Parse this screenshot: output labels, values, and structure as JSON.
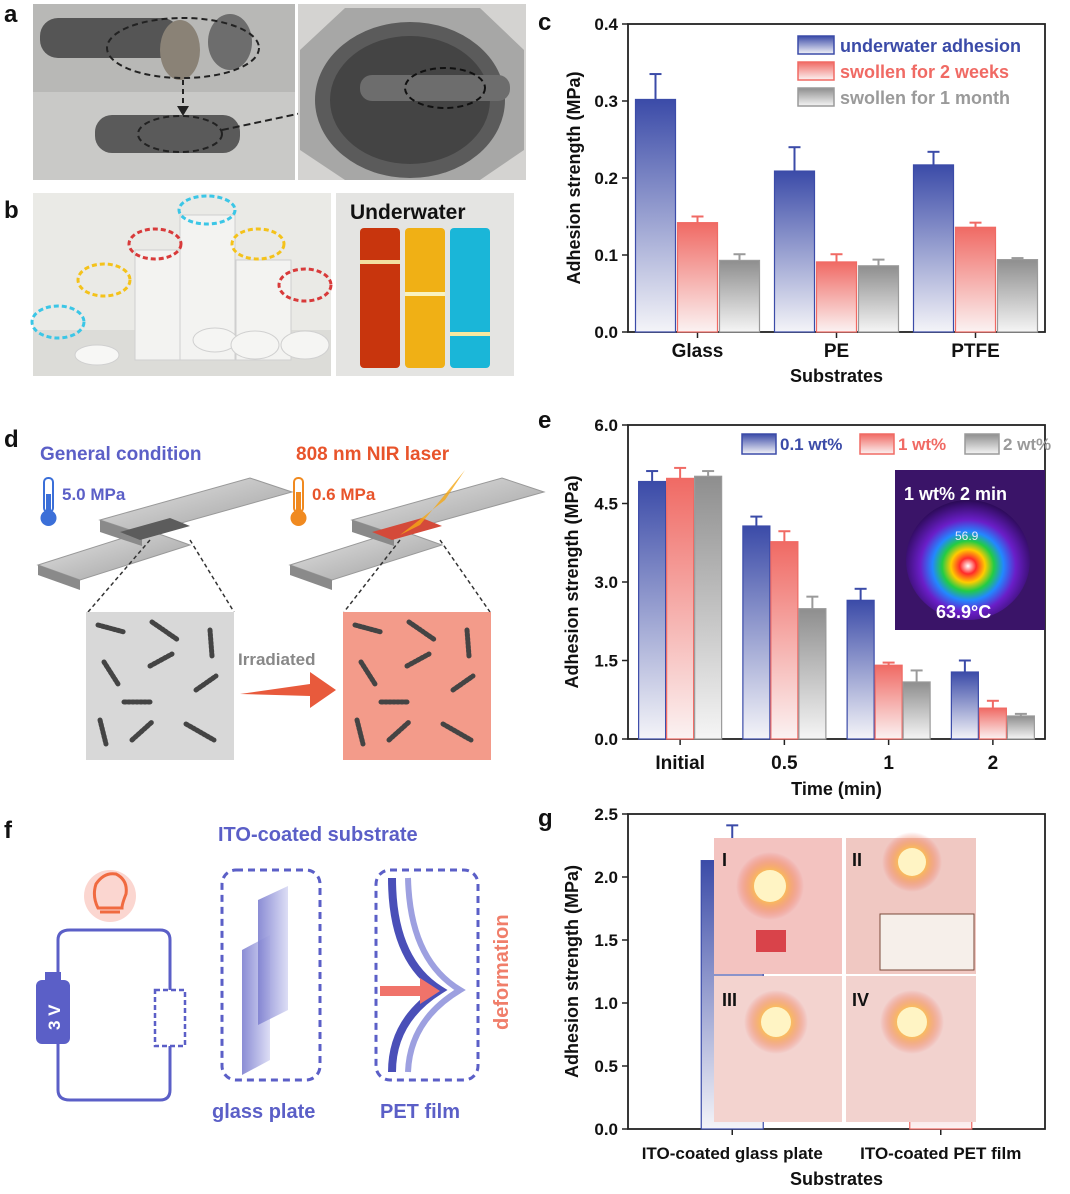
{
  "panels": {
    "a": "a",
    "b": "b",
    "c": "c",
    "d": "d",
    "e": "e",
    "f": "f",
    "g": "g"
  },
  "panel_b": {
    "underwater_label": "Underwater"
  },
  "panel_d": {
    "general_condition": "General condition",
    "general_pressure": "5.0 MPa",
    "laser_label": "808 nm NIR laser",
    "laser_pressure": "0.6 MPa",
    "arrow_label": "Irradiated"
  },
  "panel_e_inset": {
    "title": "1 wt% 2 min",
    "max_temp": "56.9",
    "temp": "63.9°C"
  },
  "panel_f": {
    "title": "ITO-coated substrate",
    "battery": "3 V",
    "glass_label": "glass plate",
    "pet_label": "PET film",
    "deformation": "deformation"
  },
  "panel_g_insets": {
    "i": "I",
    "ii": "II",
    "iii": "III",
    "iv": "IV"
  },
  "colors": {
    "blue": "#3b4ba8",
    "red": "#f06a64",
    "gray": "#9a9a9a",
    "purple_text": "#5b5fc7",
    "orange_text": "#e8542b"
  },
  "chart_data": [
    {
      "id": "c",
      "type": "bar",
      "categories": [
        "Glass",
        "PE",
        "PTFE"
      ],
      "series": [
        {
          "name": "underwater adhesion",
          "values": [
            0.302,
            0.209,
            0.217
          ],
          "errors": [
            0.033,
            0.031,
            0.017
          ],
          "color": "#3b4ba8"
        },
        {
          "name": "swollen for 2 weeks",
          "values": [
            0.142,
            0.091,
            0.136
          ],
          "errors": [
            0.008,
            0.01,
            0.006
          ],
          "color": "#f06a64"
        },
        {
          "name": "swollen for 1 month",
          "values": [
            0.093,
            0.086,
            0.094
          ],
          "errors": [
            0.008,
            0.008,
            0.002
          ],
          "color": "#9a9a9a"
        }
      ],
      "xlabel": "Substrates",
      "ylabel": "Adhesion strength (MPa)",
      "ylim": [
        0,
        0.4
      ],
      "yticks": [
        "0.0",
        "0.1",
        "0.2",
        "0.3",
        "0.4"
      ]
    },
    {
      "id": "e",
      "type": "bar",
      "categories": [
        "Initial",
        "0.5",
        "1",
        "2"
      ],
      "series": [
        {
          "name": "0.1 wt%",
          "values": [
            4.92,
            4.07,
            2.65,
            1.28
          ],
          "errors": [
            0.2,
            0.18,
            0.22,
            0.22
          ],
          "color": "#3b4ba8"
        },
        {
          "name": "1 wt%",
          "values": [
            4.98,
            3.77,
            1.41,
            0.59
          ],
          "errors": [
            0.2,
            0.2,
            0.05,
            0.14
          ],
          "color": "#f06a64"
        },
        {
          "name": "2 wt%",
          "values": [
            5.02,
            2.49,
            1.09,
            0.44
          ],
          "errors": [
            0.1,
            0.23,
            0.22,
            0.04
          ],
          "color": "#9a9a9a"
        }
      ],
      "xlabel": "Time (min)",
      "ylabel": "Adhesion strength (MPa)",
      "ylim": [
        0,
        6.0
      ],
      "yticks": [
        "0.0",
        "1.5",
        "3.0",
        "4.5",
        "6.0"
      ]
    },
    {
      "id": "g",
      "type": "bar",
      "categories": [
        "ITO-coated glass plate",
        "ITO-coated PET film"
      ],
      "series": [
        {
          "values": [
            2.13,
            1.13
          ],
          "errors": [
            0.28,
            0.07
          ],
          "colors": [
            "#3b4ba8",
            "#f06a64"
          ]
        }
      ],
      "xlabel": "Substrates",
      "ylabel": "Adhesion strength (MPa)",
      "ylim": [
        0,
        2.5
      ],
      "yticks": [
        "0.0",
        "0.5",
        "1.0",
        "1.5",
        "2.0",
        "2.5"
      ]
    }
  ]
}
